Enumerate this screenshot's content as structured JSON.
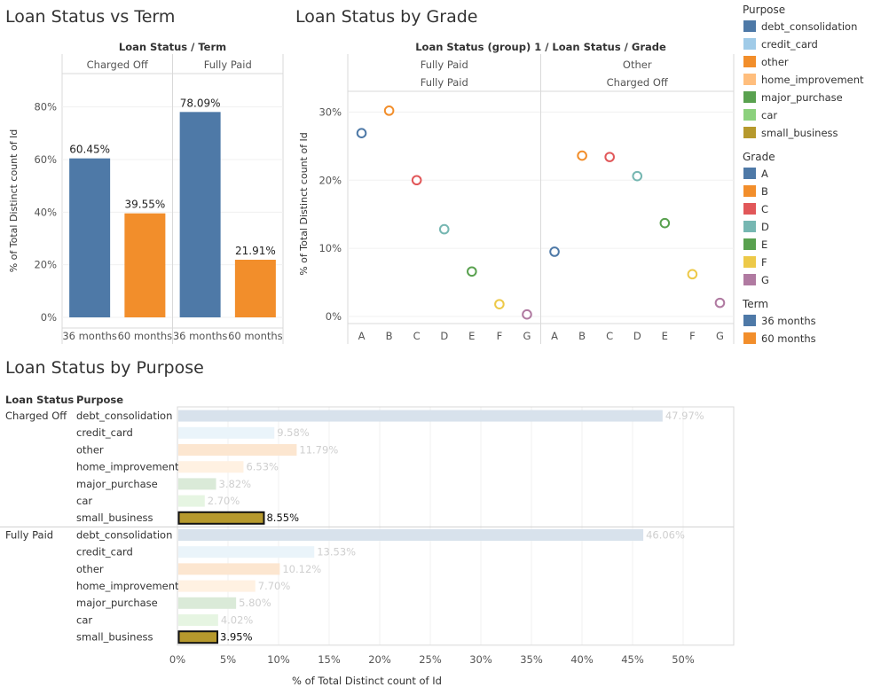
{
  "chart_data": [
    {
      "id": "term",
      "type": "bar",
      "title": "Loan Status vs Term",
      "header_label": "Loan Status  /  Term",
      "panels": [
        "Charged Off",
        "Fully Paid"
      ],
      "categories": [
        "36 months",
        "60 months"
      ],
      "values": [
        [
          60.45,
          39.55
        ],
        [
          78.09,
          21.91
        ]
      ],
      "value_labels": [
        [
          "60.45%",
          "39.55%"
        ],
        [
          "78.09%",
          "21.91%"
        ]
      ],
      "ylabel": "% of Total Distinct count of Id",
      "ylim": [
        0,
        90
      ],
      "yticks": [
        {
          "v": 0,
          "t": "0%"
        },
        {
          "v": 20,
          "t": "20%"
        },
        {
          "v": 40,
          "t": "40%"
        },
        {
          "v": 60,
          "t": "60%"
        },
        {
          "v": 80,
          "t": "80%"
        }
      ],
      "colors": [
        "#4e79a7",
        "#f28e2b"
      ]
    },
    {
      "id": "grade",
      "type": "scatter",
      "title": "Loan Status by Grade",
      "header_label": "Loan Status (group) 1  /  Loan Status  /  Grade",
      "panels": [
        {
          "group": "Fully Paid",
          "status": "Fully Paid"
        },
        {
          "group": "Other",
          "status": "Charged Off"
        }
      ],
      "categories": [
        "A",
        "B",
        "C",
        "D",
        "E",
        "F",
        "G"
      ],
      "values": [
        [
          26.9,
          30.2,
          20.0,
          12.8,
          6.6,
          1.8,
          0.3
        ],
        [
          9.5,
          23.6,
          23.4,
          20.6,
          13.7,
          6.2,
          2.0
        ]
      ],
      "ylabel": "% of Total Distinct count of Id",
      "ylim": [
        0,
        32
      ],
      "yticks": [
        {
          "v": 0,
          "t": "0%"
        },
        {
          "v": 10,
          "t": "10%"
        },
        {
          "v": 20,
          "t": "20%"
        },
        {
          "v": 30,
          "t": "30%"
        }
      ],
      "colors": [
        "#4e79a7",
        "#f28e2b",
        "#e15759",
        "#76b7b2",
        "#59a14f",
        "#edc948",
        "#b07aa1"
      ]
    },
    {
      "id": "purpose",
      "type": "bar",
      "orientation": "horizontal",
      "title": "Loan Status by Purpose",
      "row_headers": [
        "Loan Status",
        "Purpose"
      ],
      "groups": [
        {
          "status": "Charged Off",
          "rows": [
            {
              "purpose": "debt_consolidation",
              "value": 47.97,
              "label": "47.97%"
            },
            {
              "purpose": "credit_card",
              "value": 9.58,
              "label": "9.58%"
            },
            {
              "purpose": "other",
              "value": 11.79,
              "label": "11.79%"
            },
            {
              "purpose": "home_improvement",
              "value": 6.53,
              "label": "6.53%"
            },
            {
              "purpose": "major_purchase",
              "value": 3.82,
              "label": "3.82%"
            },
            {
              "purpose": "car",
              "value": 2.7,
              "label": "2.70%"
            },
            {
              "purpose": "small_business",
              "value": 8.55,
              "label": "8.55%"
            }
          ]
        },
        {
          "status": "Fully Paid",
          "rows": [
            {
              "purpose": "debt_consolidation",
              "value": 46.06,
              "label": "46.06%"
            },
            {
              "purpose": "credit_card",
              "value": 13.53,
              "label": "13.53%"
            },
            {
              "purpose": "other",
              "value": 10.12,
              "label": "10.12%"
            },
            {
              "purpose": "home_improvement",
              "value": 7.7,
              "label": "7.70%"
            },
            {
              "purpose": "major_purchase",
              "value": 5.8,
              "label": "5.80%"
            },
            {
              "purpose": "car",
              "value": 4.02,
              "label": "4.02%"
            },
            {
              "purpose": "small_business",
              "value": 3.95,
              "label": "3.95%"
            }
          ]
        }
      ],
      "highlighted": "small_business",
      "xlabel": "% of Total Distinct count of Id",
      "xlim": [
        0,
        55
      ],
      "xticks": [
        {
          "v": 0,
          "t": "0%"
        },
        {
          "v": 5,
          "t": "5%"
        },
        {
          "v": 10,
          "t": "10%"
        },
        {
          "v": 15,
          "t": "15%"
        },
        {
          "v": 20,
          "t": "20%"
        },
        {
          "v": 25,
          "t": "25%"
        },
        {
          "v": 30,
          "t": "30%"
        },
        {
          "v": 35,
          "t": "35%"
        },
        {
          "v": 40,
          "t": "40%"
        },
        {
          "v": 45,
          "t": "45%"
        },
        {
          "v": 50,
          "t": "50%"
        }
      ],
      "purpose_colors": {
        "debt_consolidation": "#4e79a7",
        "credit_card": "#a0cbe8",
        "other": "#f28e2b",
        "home_improvement": "#ffbe7d",
        "major_purchase": "#59a14f",
        "car": "#8cd17d",
        "small_business": "#b6992d"
      }
    }
  ],
  "legends": [
    {
      "title": "Purpose",
      "items": [
        {
          "label": "debt_consolidation",
          "color": "#4e79a7"
        },
        {
          "label": "credit_card",
          "color": "#a0cbe8"
        },
        {
          "label": "other",
          "color": "#f28e2b"
        },
        {
          "label": "home_improvement",
          "color": "#ffbe7d"
        },
        {
          "label": "major_purchase",
          "color": "#59a14f"
        },
        {
          "label": "car",
          "color": "#8cd17d"
        },
        {
          "label": "small_business",
          "color": "#b6992d"
        }
      ]
    },
    {
      "title": "Grade",
      "items": [
        {
          "label": "A",
          "color": "#4e79a7"
        },
        {
          "label": "B",
          "color": "#f28e2b"
        },
        {
          "label": "C",
          "color": "#e15759"
        },
        {
          "label": "D",
          "color": "#76b7b2"
        },
        {
          "label": "E",
          "color": "#59a14f"
        },
        {
          "label": "F",
          "color": "#edc948"
        },
        {
          "label": "G",
          "color": "#b07aa1"
        }
      ]
    },
    {
      "title": "Term",
      "items": [
        {
          "label": "36 months",
          "color": "#4e79a7"
        },
        {
          "label": "60 months",
          "color": "#f28e2b"
        }
      ]
    }
  ]
}
